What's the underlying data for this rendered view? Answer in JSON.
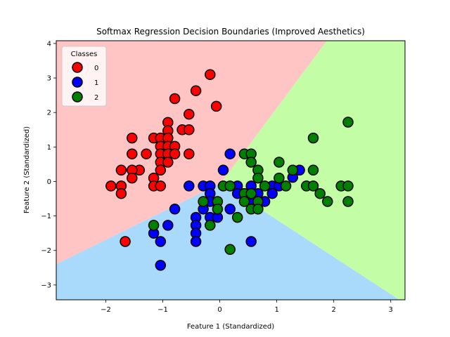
{
  "chart_data": {
    "type": "scatter",
    "title": "Softmax Regression Decision Boundaries (Improved Aesthetics)",
    "xlabel": "Feature 1 (Standardized)",
    "ylabel": "Feature 2 (Standardized)",
    "xlim": [
      -2.87,
      3.25
    ],
    "ylim": [
      -3.43,
      4.08
    ],
    "xticks": [
      -2,
      -1,
      0,
      1,
      2,
      3
    ],
    "yticks": [
      -3,
      -2,
      -1,
      0,
      1,
      2,
      3,
      4
    ],
    "grid": false,
    "legend": {
      "title": "Classes",
      "placement": "top-left"
    },
    "regions": [
      {
        "class": "0",
        "color": "#ffc4c4"
      },
      {
        "class": "1",
        "color": "#a9d9fb"
      },
      {
        "class": "2",
        "color": "#c3fea7"
      }
    ],
    "boundary_center": [
      0.02,
      -0.05
    ],
    "boundary_ends": {
      "top": [
        1.88,
        4.08
      ],
      "left": [
        -2.87,
        -2.4
      ],
      "right": [
        3.15,
        -3.43
      ]
    },
    "series": [
      {
        "name": "0",
        "color": "#ff0000",
        "points": [
          [
            -0.17,
            3.1
          ],
          [
            -0.42,
            2.63
          ],
          [
            -0.06,
            2.18
          ],
          [
            -0.79,
            2.4
          ],
          [
            -0.54,
            1.95
          ],
          [
            -0.91,
            1.71
          ],
          [
            -0.66,
            1.5
          ],
          [
            -0.54,
            1.5
          ],
          [
            -0.91,
            1.47
          ],
          [
            -1.54,
            1.26
          ],
          [
            -1.16,
            1.26
          ],
          [
            -1.04,
            1.26
          ],
          [
            -0.91,
            1.26
          ],
          [
            -1.04,
            1.02
          ],
          [
            -0.91,
            1.02
          ],
          [
            -0.79,
            1.02
          ],
          [
            -1.54,
            0.8
          ],
          [
            -1.29,
            0.8
          ],
          [
            -1.04,
            0.8
          ],
          [
            -0.91,
            0.8
          ],
          [
            -0.79,
            0.8
          ],
          [
            -0.54,
            0.8
          ],
          [
            -1.04,
            0.56
          ],
          [
            -0.91,
            0.56
          ],
          [
            -1.41,
            0.33
          ],
          [
            -1.54,
            0.33
          ],
          [
            -1.73,
            0.33
          ],
          [
            -1.04,
            0.33
          ],
          [
            -1.16,
            0.1
          ],
          [
            -1.54,
            0.1
          ],
          [
            -1.91,
            -0.13
          ],
          [
            -1.73,
            -0.13
          ],
          [
            -1.16,
            -0.13
          ],
          [
            -1.04,
            -0.13
          ],
          [
            -1.73,
            -0.35
          ],
          [
            -1.66,
            -1.74
          ]
        ]
      },
      {
        "name": "1",
        "color": "#0000ff",
        "points": [
          [
            0.18,
            0.8
          ],
          [
            0.06,
            0.33
          ],
          [
            1.4,
            0.33
          ],
          [
            1.28,
            0.12
          ],
          [
            -0.54,
            -0.13
          ],
          [
            -0.29,
            -0.13
          ],
          [
            -0.17,
            -0.13
          ],
          [
            0.31,
            -0.13
          ],
          [
            0.55,
            -0.13
          ],
          [
            0.92,
            -0.13
          ],
          [
            1.04,
            -0.13
          ],
          [
            -0.17,
            -0.35
          ],
          [
            0.31,
            -0.35
          ],
          [
            0.43,
            -0.35
          ],
          [
            0.67,
            -0.35
          ],
          [
            0.92,
            -0.35
          ],
          [
            -0.17,
            -0.58
          ],
          [
            0.55,
            -0.58
          ],
          [
            0.79,
            -0.58
          ],
          [
            -0.79,
            -0.8
          ],
          [
            -0.29,
            -0.8
          ],
          [
            0.18,
            -0.8
          ],
          [
            -0.42,
            -1.04
          ],
          [
            -0.17,
            -1.04
          ],
          [
            -0.04,
            -1.04
          ],
          [
            -0.42,
            -1.27
          ],
          [
            -0.91,
            -1.27
          ],
          [
            -0.42,
            -1.5
          ],
          [
            -1.16,
            -1.5
          ],
          [
            -0.42,
            -1.74
          ],
          [
            -1.04,
            -1.74
          ],
          [
            0.55,
            -1.74
          ],
          [
            -1.04,
            -2.43
          ]
        ]
      },
      {
        "name": "2",
        "color": "#008000",
        "points": [
          [
            2.25,
            1.72
          ],
          [
            1.64,
            1.26
          ],
          [
            0.43,
            0.8
          ],
          [
            0.55,
            0.8
          ],
          [
            0.55,
            0.56
          ],
          [
            1.04,
            0.56
          ],
          [
            0.67,
            0.33
          ],
          [
            1.28,
            0.33
          ],
          [
            1.64,
            0.33
          ],
          [
            0.67,
            0.1
          ],
          [
            1.04,
            0.1
          ],
          [
            0.06,
            -0.13
          ],
          [
            0.18,
            -0.13
          ],
          [
            0.79,
            -0.13
          ],
          [
            1.16,
            -0.13
          ],
          [
            1.52,
            -0.13
          ],
          [
            1.64,
            -0.13
          ],
          [
            2.13,
            -0.13
          ],
          [
            2.25,
            -0.13
          ],
          [
            0.43,
            -0.35
          ],
          [
            0.55,
            -0.35
          ],
          [
            1.76,
            -0.35
          ],
          [
            -0.29,
            -0.58
          ],
          [
            -0.04,
            -0.58
          ],
          [
            0.43,
            -0.58
          ],
          [
            0.67,
            -0.58
          ],
          [
            1.89,
            -0.58
          ],
          [
            2.25,
            -0.58
          ],
          [
            -0.04,
            -0.8
          ],
          [
            0.55,
            -0.8
          ],
          [
            0.67,
            -0.8
          ],
          [
            0.31,
            -1.04
          ],
          [
            -0.17,
            -1.27
          ],
          [
            -1.16,
            -1.27
          ],
          [
            0.18,
            -1.97
          ]
        ]
      }
    ]
  }
}
